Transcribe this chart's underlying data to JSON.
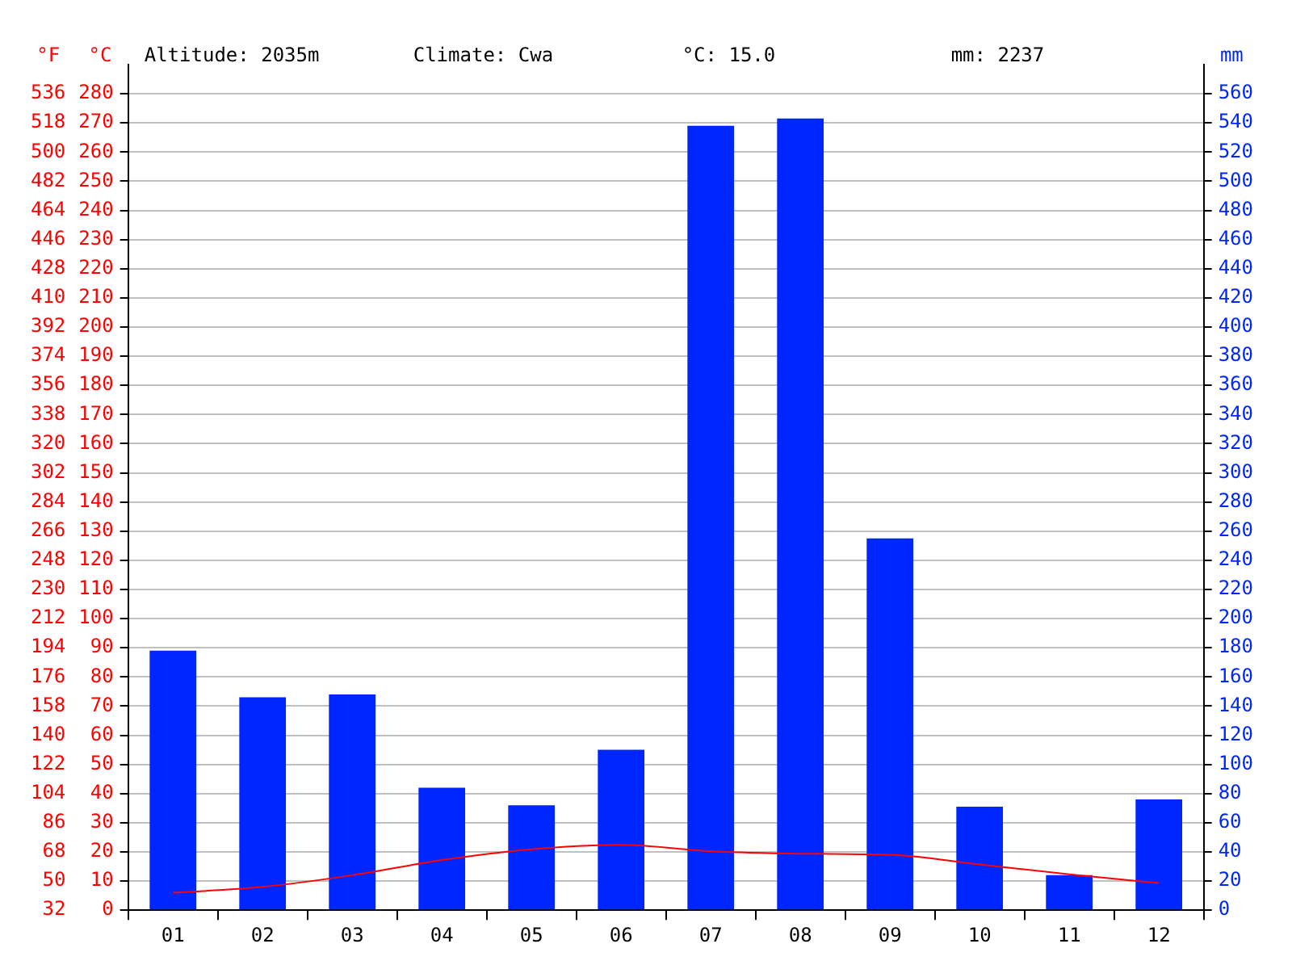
{
  "chart_data": {
    "type": "bar",
    "categories": [
      "01",
      "02",
      "03",
      "04",
      "05",
      "06",
      "07",
      "08",
      "09",
      "10",
      "11",
      "12"
    ],
    "series": [
      {
        "axis": "y2",
        "color": "#0026ff",
        "values": [
          178,
          146,
          148,
          84,
          72,
          110,
          538,
          543,
          255,
          71,
          24,
          76
        ]
      },
      {
        "type": "line",
        "axis": "y",
        "color": "#ff0000",
        "values": [
          6,
          8,
          12,
          17.2,
          20.9,
          22.4,
          20.2,
          19.4,
          19,
          15.7,
          12.3,
          9.3
        ]
      }
    ],
    "ylabel": "°C",
    "y2label": "mm",
    "y3label": "°F",
    "ylim": [
      0,
      290
    ],
    "yticks": [
      0,
      10,
      20,
      30,
      40,
      50,
      60,
      70,
      80,
      90,
      100,
      110,
      120,
      130,
      140,
      150,
      160,
      170,
      180,
      190,
      200,
      210,
      220,
      230,
      240,
      250,
      260,
      270,
      280
    ],
    "y2lim": [
      0,
      580
    ],
    "y2ticks": [
      0,
      20,
      40,
      60,
      80,
      100,
      120,
      140,
      160,
      180,
      200,
      220,
      240,
      260,
      280,
      300,
      320,
      340,
      360,
      380,
      400,
      420,
      440,
      460,
      480,
      500,
      520,
      540,
      560
    ],
    "y3lim": [
      32,
      554
    ],
    "y3ticks": [
      32,
      50,
      68,
      86,
      104,
      122,
      140,
      158,
      176,
      194,
      212,
      230,
      248,
      266,
      284,
      302,
      320,
      338,
      356,
      374,
      392,
      410,
      428,
      446,
      464,
      482,
      500,
      518,
      536
    ],
    "annotations": [
      "Altitude: 2035m",
      "Climate: Cwa",
      "°C: 15.0",
      "mm: 2237"
    ],
    "grid": "y",
    "legend": false
  }
}
